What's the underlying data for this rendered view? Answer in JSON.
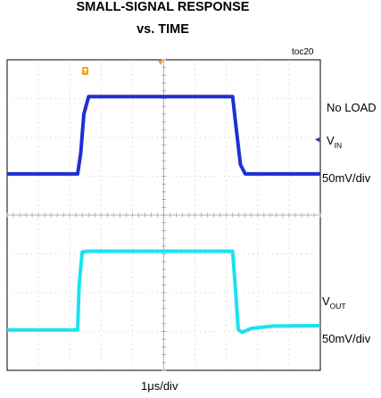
{
  "chart_data": {
    "type": "line",
    "title": "SMALL-SIGNAL RESPONSE",
    "subtitle": "vs. TIME",
    "figure_id": "toc20",
    "xlabel": "1μs/div",
    "condition": "No LOAD",
    "x_divisions": 10,
    "y_divisions": 8,
    "grid": true,
    "series": [
      {
        "name_main": "V",
        "name_sub": "IN",
        "scale": "50mV/div",
        "color": "#1f2fd6",
        "x": [
          0,
          2.25,
          2.35,
          2.45,
          2.6,
          7.2,
          7.32,
          7.45,
          7.6,
          10
        ],
        "y": [
          5.06,
          5.06,
          5.6,
          6.6,
          7.05,
          7.05,
          6.2,
          5.3,
          5.06,
          5.06
        ]
      },
      {
        "name_main": "V",
        "name_sub": "OUT",
        "scale": "50mV/div",
        "color": "#19e3f0",
        "x": [
          0,
          2.25,
          2.3,
          2.4,
          2.55,
          7.2,
          7.3,
          7.38,
          7.5,
          7.8,
          8.5,
          10
        ],
        "y": [
          1.04,
          1.04,
          2.2,
          3.05,
          3.07,
          3.07,
          2.0,
          1.05,
          0.98,
          1.08,
          1.14,
          1.15
        ]
      }
    ]
  },
  "markers": {
    "trigger_color": "#f0a020",
    "ground_color": "#2b3fbf"
  }
}
